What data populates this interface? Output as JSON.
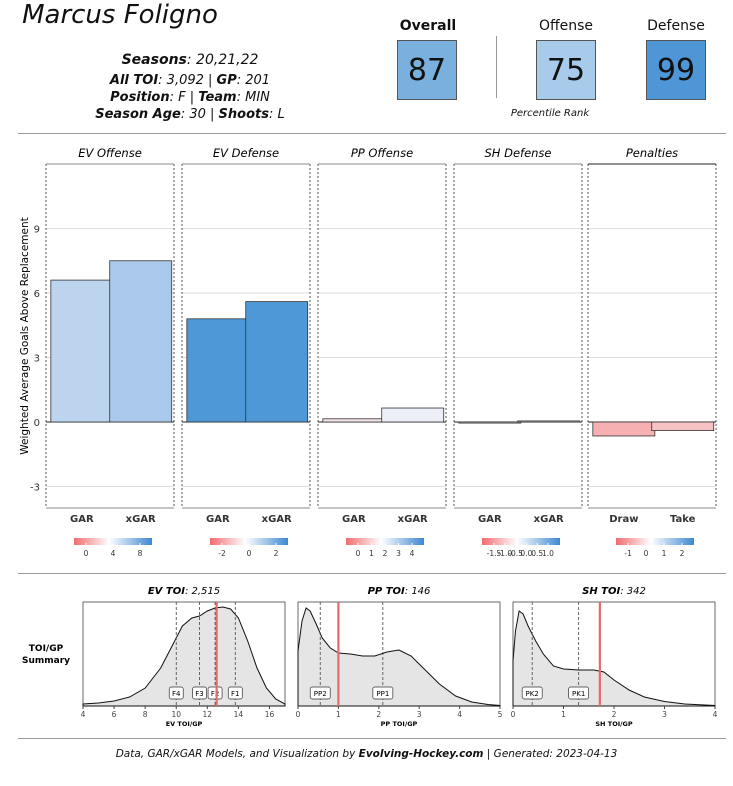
{
  "header": {
    "player_name": "Marcus Foligno",
    "seasons_label": "Seasons",
    "seasons_value": ": 20,21,22",
    "toi_label": "All TOI",
    "toi_value": ": 3,092 | ",
    "gp_label": "GP",
    "gp_value": ": 201",
    "position_label": "Position",
    "position_value": ": F | ",
    "team_label": "Team",
    "team_value": ": MIN",
    "age_label": "Season Age",
    "age_value": ": 30 | ",
    "shoots_label": "Shoots",
    "shoots_value": ": L"
  },
  "ranks": {
    "overall_title": "Overall",
    "overall_value": "87",
    "overall_color": "#7ab0de",
    "offense_title": "Offense",
    "offense_value": "75",
    "offense_color": "#a9cbeb",
    "defense_title": "Defense",
    "defense_value": "99",
    "defense_color": "#4e96d6",
    "caption": "Percentile  Rank"
  },
  "chart_data": [
    {
      "type": "bar",
      "ylabel": "Weighted Average Goals Above Replacement",
      "ylim": [
        -4,
        12
      ],
      "yticks": [
        -3,
        0,
        3,
        6,
        9
      ],
      "grid": true,
      "panels": [
        {
          "title": "EV Offense",
          "categories": [
            "GAR",
            "xGAR"
          ],
          "values": [
            6.6,
            7.5
          ],
          "colors": [
            "#bcd4ee",
            "#aac8ea"
          ],
          "legend_ticks": [
            "0",
            "4",
            "8"
          ]
        },
        {
          "title": "EV Defense",
          "categories": [
            "GAR",
            "xGAR"
          ],
          "values": [
            4.8,
            5.6
          ],
          "colors": [
            "#4e98d8",
            "#4e98d8"
          ],
          "legend_ticks": [
            "-2",
            "0",
            "2"
          ]
        },
        {
          "title": "PP Offense",
          "categories": [
            "GAR",
            "xGAR"
          ],
          "values": [
            0.15,
            0.65
          ],
          "colors": [
            "#f3e3e6",
            "#eceef8"
          ],
          "legend_ticks": [
            "0",
            "1",
            "2",
            "3",
            "4"
          ]
        },
        {
          "title": "SH Defense",
          "categories": [
            "GAR",
            "xGAR"
          ],
          "values": [
            -0.05,
            0.05
          ],
          "colors": [
            "#f6f0f2",
            "#eef0f6"
          ],
          "legend_ticks": [
            "-1.5",
            "-1.0",
            "-0.5",
            "0.0",
            "0.5",
            "1.0"
          ]
        },
        {
          "title": "Penalties",
          "categories": [
            "Draw",
            "Take"
          ],
          "values": [
            -0.65,
            -0.4
          ],
          "colors": [
            "#f7b0b2",
            "#f7c2c4"
          ],
          "legend_ticks": [
            "-1",
            "0",
            "1",
            "2"
          ]
        }
      ]
    },
    {
      "type": "area",
      "row_label_1": "TOI/GP",
      "row_label_2": "Summary",
      "panels": [
        {
          "title_bold": "EV TOI",
          "title_value": ": 2,515",
          "xlabel": "EV TOI/GP",
          "xlim": [
            4,
            17
          ],
          "xticks": [
            "4",
            "6",
            "8",
            "10",
            "12",
            "14",
            "16"
          ],
          "player_value": 12.6,
          "markers": [
            {
              "label": "F4",
              "x": 10.0
            },
            {
              "label": "F3",
              "x": 11.5
            },
            {
              "label": "F2",
              "x": 12.5
            },
            {
              "label": "F1",
              "x": 13.8
            }
          ],
          "density": [
            [
              4,
              0.02
            ],
            [
              5,
              0.03
            ],
            [
              6,
              0.05
            ],
            [
              7,
              0.09
            ],
            [
              8,
              0.18
            ],
            [
              9,
              0.38
            ],
            [
              9.8,
              0.62
            ],
            [
              10.4,
              0.8
            ],
            [
              11,
              0.88
            ],
            [
              11.5,
              0.9
            ],
            [
              12,
              0.95
            ],
            [
              12.5,
              0.98
            ],
            [
              13,
              0.99
            ],
            [
              13.5,
              0.97
            ],
            [
              14,
              0.88
            ],
            [
              14.6,
              0.65
            ],
            [
              15.2,
              0.38
            ],
            [
              15.8,
              0.18
            ],
            [
              16.4,
              0.07
            ],
            [
              17,
              0.02
            ]
          ]
        },
        {
          "title_bold": "PP TOI",
          "title_value": ": 146",
          "xlabel": "PP TOI/GP",
          "xlim": [
            0,
            5
          ],
          "xticks": [
            "0",
            "1",
            "2",
            "3",
            "4",
            "5"
          ],
          "player_value": 1.0,
          "markers": [
            {
              "label": "PP2",
              "x": 0.55
            },
            {
              "label": "PP1",
              "x": 2.1
            }
          ],
          "density": [
            [
              0,
              0.55
            ],
            [
              0.1,
              0.85
            ],
            [
              0.2,
              0.98
            ],
            [
              0.3,
              0.95
            ],
            [
              0.45,
              0.82
            ],
            [
              0.6,
              0.68
            ],
            [
              0.8,
              0.58
            ],
            [
              1.0,
              0.53
            ],
            [
              1.3,
              0.52
            ],
            [
              1.6,
              0.5
            ],
            [
              1.9,
              0.5
            ],
            [
              2.2,
              0.54
            ],
            [
              2.5,
              0.56
            ],
            [
              2.8,
              0.5
            ],
            [
              3.1,
              0.38
            ],
            [
              3.5,
              0.22
            ],
            [
              3.9,
              0.1
            ],
            [
              4.3,
              0.04
            ],
            [
              4.7,
              0.015
            ],
            [
              5,
              0.005
            ]
          ]
        },
        {
          "title_bold": "SH TOI",
          "title_value": ": 342",
          "xlabel": "SH TOI/GP",
          "xlim": [
            0,
            4
          ],
          "xticks": [
            "0",
            "1",
            "2",
            "3",
            "4"
          ],
          "player_value": 1.72,
          "markers": [
            {
              "label": "PK2",
              "x": 0.38
            },
            {
              "label": "PK1",
              "x": 1.3
            }
          ],
          "density": [
            [
              0,
              0.45
            ],
            [
              0.05,
              0.75
            ],
            [
              0.12,
              0.95
            ],
            [
              0.2,
              0.92
            ],
            [
              0.3,
              0.8
            ],
            [
              0.45,
              0.65
            ],
            [
              0.6,
              0.52
            ],
            [
              0.8,
              0.4
            ],
            [
              1.0,
              0.37
            ],
            [
              1.3,
              0.36
            ],
            [
              1.6,
              0.36
            ],
            [
              1.8,
              0.34
            ],
            [
              2.0,
              0.26
            ],
            [
              2.3,
              0.16
            ],
            [
              2.6,
              0.09
            ],
            [
              3.0,
              0.045
            ],
            [
              3.4,
              0.02
            ],
            [
              4.0,
              0.005
            ]
          ]
        }
      ]
    }
  ],
  "footer": {
    "text_1": "Data, GAR/xGAR Models, and Visualization by ",
    "brand": "Evolving-Hockey.com",
    "text_2": " | Generated: 2023-04-13"
  }
}
